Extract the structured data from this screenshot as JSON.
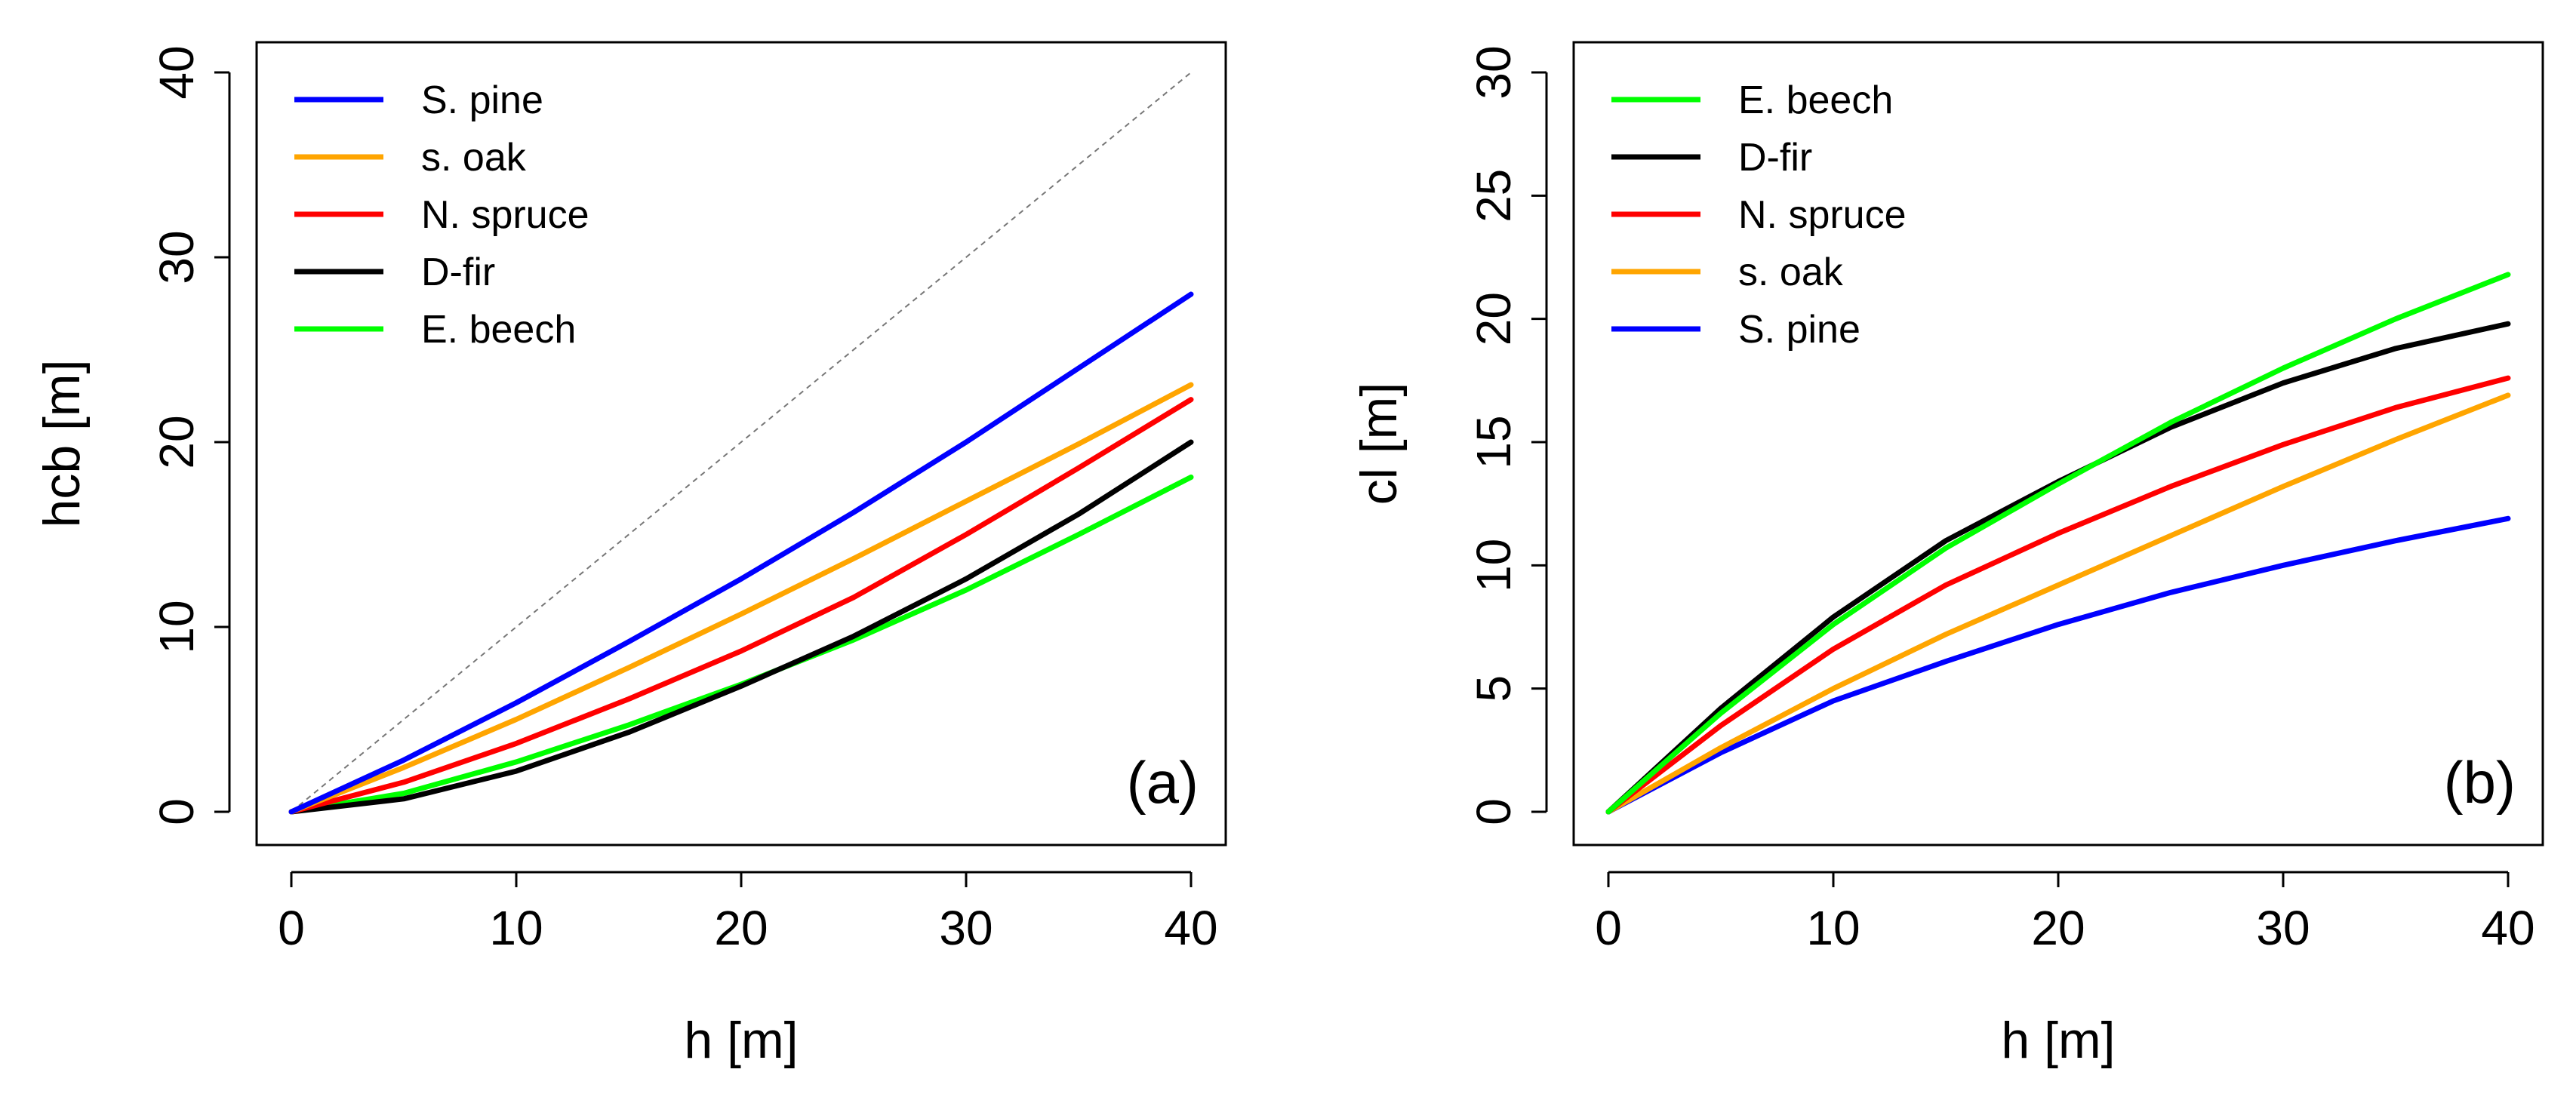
{
  "colors": {
    "S. pine": "#0000ff",
    "s. oak": "#ffa500",
    "N. spruce": "#ff0000",
    "D-fir": "#000000",
    "E. beech": "#00ff00",
    "reference": "#777777"
  },
  "chart_data": [
    {
      "type": "line",
      "panel_label": "(a)",
      "xlabel": "h [m]",
      "ylabel": "hcb [m]",
      "xlim": [
        0,
        40
      ],
      "ylim": [
        0,
        40
      ],
      "xticks": [
        0,
        10,
        20,
        30,
        40
      ],
      "yticks": [
        0,
        10,
        20,
        30,
        40
      ],
      "x": [
        0,
        5,
        10,
        15,
        20,
        25,
        30,
        35,
        40
      ],
      "legend_position": "top-left",
      "legend_order": [
        "S. pine",
        "s. oak",
        "N. spruce",
        "D-fir",
        "E. beech"
      ],
      "reference_line": {
        "from": [
          0,
          0
        ],
        "to": [
          40,
          40
        ],
        "style": "dotted"
      },
      "series": [
        {
          "name": "S. pine",
          "values": [
            0,
            2.8,
            5.9,
            9.2,
            12.6,
            16.2,
            20.0,
            24.0,
            28.0
          ]
        },
        {
          "name": "s. oak",
          "values": [
            0,
            2.4,
            5.0,
            7.8,
            10.7,
            13.7,
            16.8,
            19.9,
            23.1
          ]
        },
        {
          "name": "N. spruce",
          "values": [
            0,
            1.6,
            3.7,
            6.1,
            8.7,
            11.6,
            15.0,
            18.6,
            22.3
          ]
        },
        {
          "name": "D-fir",
          "values": [
            0,
            0.7,
            2.2,
            4.3,
            6.8,
            9.5,
            12.6,
            16.1,
            20.0
          ]
        },
        {
          "name": "E. beech",
          "values": [
            0,
            1.0,
            2.7,
            4.7,
            6.9,
            9.3,
            12.0,
            15.0,
            18.1
          ]
        }
      ]
    },
    {
      "type": "line",
      "panel_label": "(b)",
      "xlabel": "h [m]",
      "ylabel": "cl [m]",
      "xlim": [
        0,
        40
      ],
      "ylim": [
        0,
        30
      ],
      "xticks": [
        0,
        10,
        20,
        30,
        40
      ],
      "yticks": [
        0,
        5,
        10,
        15,
        20,
        25,
        30
      ],
      "x": [
        0,
        5,
        10,
        15,
        20,
        25,
        30,
        35,
        40
      ],
      "legend_position": "top-left",
      "legend_order": [
        "E. beech",
        "D-fir",
        "N. spruce",
        "s. oak",
        "S. pine"
      ],
      "series": [
        {
          "name": "E. beech",
          "values": [
            0,
            4.0,
            7.6,
            10.7,
            13.3,
            15.8,
            18.0,
            20.0,
            21.8
          ]
        },
        {
          "name": "D-fir",
          "values": [
            0,
            4.2,
            7.9,
            11.0,
            13.4,
            15.6,
            17.4,
            18.8,
            19.8
          ]
        },
        {
          "name": "N. spruce",
          "values": [
            0,
            3.5,
            6.6,
            9.2,
            11.3,
            13.2,
            14.9,
            16.4,
            17.6
          ]
        },
        {
          "name": "s. oak",
          "values": [
            0,
            2.6,
            5.0,
            7.2,
            9.2,
            11.2,
            13.2,
            15.1,
            16.9
          ]
        },
        {
          "name": "S. pine",
          "values": [
            0,
            2.4,
            4.5,
            6.1,
            7.6,
            8.9,
            10.0,
            11.0,
            11.9
          ]
        }
      ]
    }
  ]
}
